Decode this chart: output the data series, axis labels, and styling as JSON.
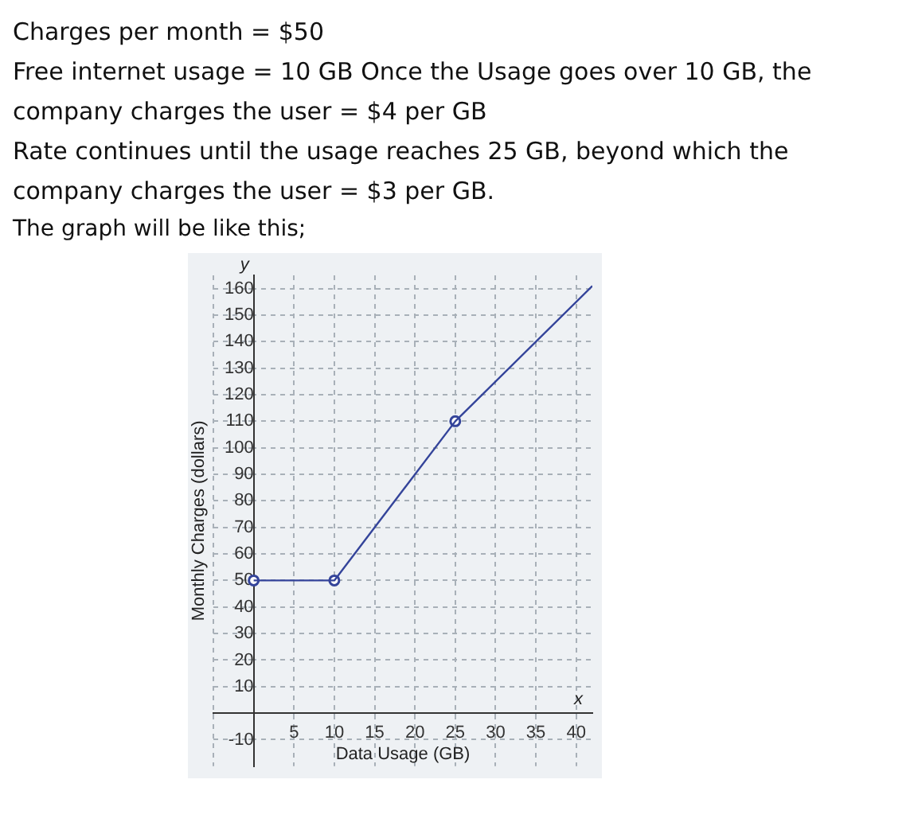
{
  "chart_data": {
    "type": "line",
    "title": "Charges per month = $50\nFree internet usage = 10 GB Once the Usage goes over 10 GB, the company charges the user = $4 per GB\nRate continues until the usage reaches 25 GB, beyond which the company charges the user = $3 per GB.",
    "subtitle": "The graph will be like this;",
    "xlabel": "Data Usage (GB)",
    "ylabel": "Monthly Charges (dollars)",
    "annotations": [
      "x",
      "y"
    ],
    "series": [
      {
        "color": "#34449a",
        "x": [
          0,
          10,
          25,
          42
        ],
        "values": [
          50,
          50,
          110,
          161
        ],
        "marker": "none"
      },
      {
        "type": "scatter",
        "color": "#34449a",
        "x": [
          0,
          10,
          25
        ],
        "values": [
          50,
          50,
          110
        ],
        "marker": "circle"
      }
    ],
    "xlim": [
      -5,
      42
    ],
    "ylim": [
      -20,
      165
    ],
    "xticks": [
      {
        "value": -5,
        "label": null
      },
      {
        "value": 0,
        "label": null
      },
      5,
      10,
      15,
      20,
      25,
      30,
      35,
      40
    ],
    "yticks": [
      -10,
      {
        "value": 0,
        "label": null
      },
      10,
      20,
      30,
      40,
      50,
      60,
      70,
      80,
      90,
      100,
      110,
      120,
      130,
      140,
      150,
      160
    ],
    "grid": true,
    "legend": false
  }
}
